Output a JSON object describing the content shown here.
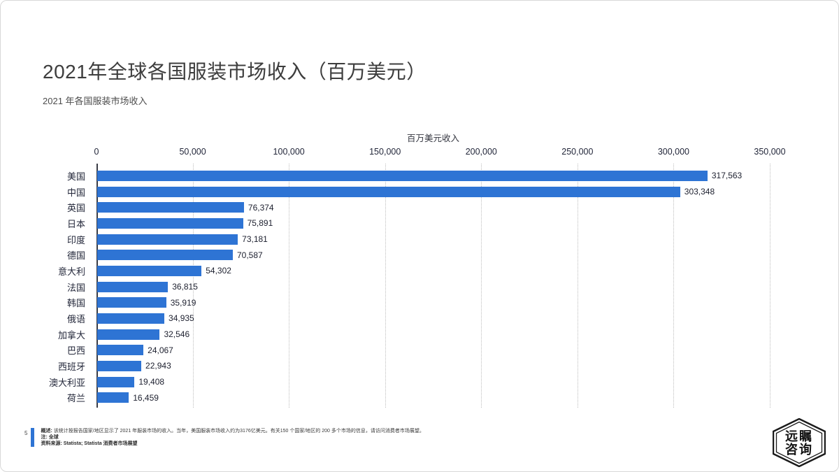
{
  "page": {
    "title": "2021年全球各国服装市场收入（百万美元）",
    "subtitle": "2021 年各国服装市场收入",
    "page_number": "5"
  },
  "chart_data": {
    "type": "bar",
    "orientation": "horizontal",
    "axis_title": "百万美元收入",
    "categories": [
      "美国",
      "中国",
      "英国",
      "日本",
      "印度",
      "德国",
      "意大利",
      "法国",
      "韩国",
      "俄语",
      "加拿大",
      "巴西",
      "西班牙",
      "澳大利亚",
      "荷兰"
    ],
    "values": [
      317563,
      303348,
      76374,
      75891,
      73181,
      70587,
      54302,
      36815,
      35919,
      34935,
      32546,
      24067,
      22943,
      19408,
      16459
    ],
    "value_labels": [
      "317,563",
      "303,348",
      "76,374",
      "75,891",
      "73,181",
      "70,587",
      "54,302",
      "36,815",
      "35,919",
      "34,935",
      "32,546",
      "24,067",
      "22,943",
      "19,408",
      "16,459"
    ],
    "xlim": [
      0,
      350000
    ],
    "x_ticks": [
      "0",
      "50,000",
      "100,000",
      "150,000",
      "200,000",
      "250,000",
      "300,000",
      "350,000"
    ],
    "grid": "vertical-dotted",
    "legend": "none",
    "bar_color": "#2E74D4"
  },
  "footer": {
    "note_label": "概述:",
    "note_text": "该统计按报告国家/地区显示了 2021 年服装市场的收入。当年，美国服装市场收入约为3176亿美元。有关150 个国家/地区的 200 多个市场的信息，请访问消费者市场展望。",
    "remark_label": "注:",
    "remark_text": "全球",
    "source_label": "资料来源:",
    "source_text": "Statista;  Statista 消费者市场展望"
  },
  "logo": {
    "line1": "远瞩",
    "line2": "咨询"
  },
  "colors": {
    "bar": "#2E74D4",
    "accent": "#2E74D4",
    "title_text": "#3d3d3d"
  }
}
